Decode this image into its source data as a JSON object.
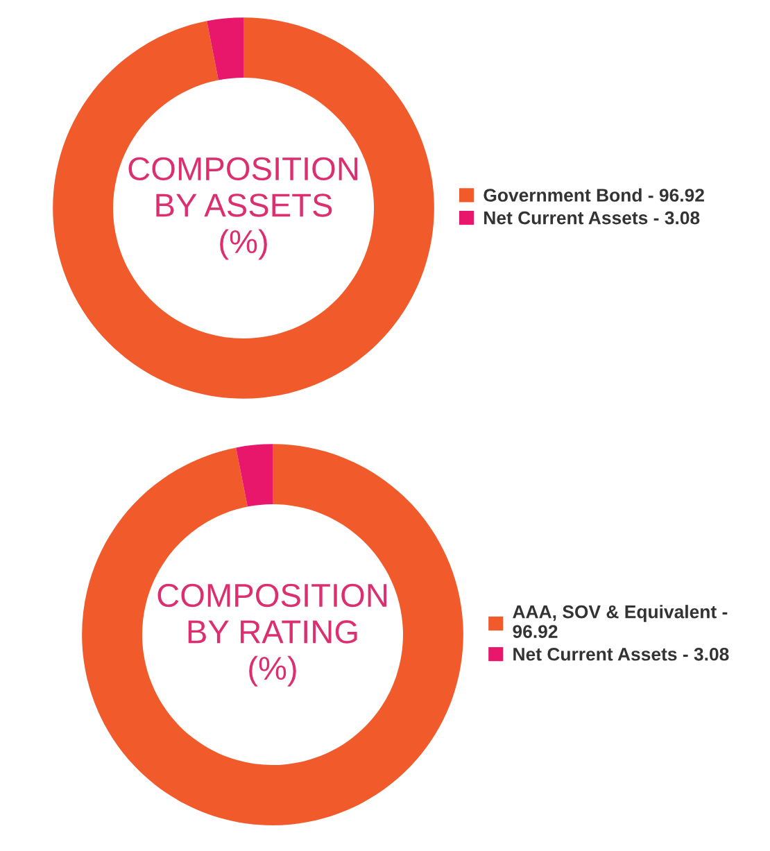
{
  "chart_data": [
    {
      "type": "donut",
      "title": "COMPOSITION\nBY ASSETS\n(%)",
      "categories": [
        "Government Bond - 96.92",
        "Net Current Assets - 3.08"
      ],
      "values": [
        96.92,
        3.08
      ],
      "colors": [
        "#f15a2b",
        "#e8176b"
      ],
      "legend": "right"
    },
    {
      "type": "donut",
      "title": "COMPOSITION\nBY RATING\n(%)",
      "categories": [
        "AAA, SOV & Equivalent - 96.92",
        "Net Current Assets - 3.08"
      ],
      "values": [
        96.92,
        3.08
      ],
      "colors": [
        "#f15a2b",
        "#e8176b"
      ],
      "legend": "right"
    }
  ]
}
